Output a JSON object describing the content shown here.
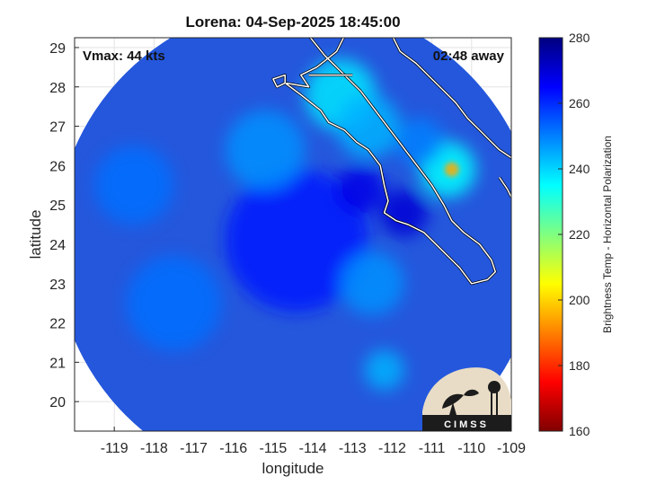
{
  "title": "Lorena: 04-Sep-2025 18:45:00",
  "annotations": {
    "vmax": "Vmax: 44 kts",
    "time_away": "02:48 away"
  },
  "axes": {
    "xlabel": "longitude",
    "ylabel": "latitude",
    "xlim": [
      -120,
      -109
    ],
    "ylim": [
      19.25,
      29.25
    ],
    "xticks": [
      -119,
      -118,
      -117,
      -116,
      -115,
      -114,
      -113,
      -112,
      -111,
      -110,
      -109
    ],
    "yticks": [
      20,
      21,
      22,
      23,
      24,
      25,
      26,
      27,
      28,
      29
    ],
    "grid": true
  },
  "colorbar": {
    "label": "Brightness Temp - Horizontal Polarization",
    "range": [
      160,
      280
    ],
    "ticks": [
      160,
      180,
      200,
      220,
      240,
      260,
      280
    ],
    "colormap": "jet",
    "colors": [
      "#800000",
      "#ff0000",
      "#ff8000",
      "#ffff00",
      "#80ff80",
      "#00ffff",
      "#0080ff",
      "#0000ff",
      "#000080"
    ]
  },
  "logo": "CIMSS",
  "colors": {
    "ocean_dark": "#1e38b8",
    "ocean_mid": "#2457dc",
    "cloud_light": "#35b8f0",
    "cloud_cyan": "#40e0e8",
    "hot_spot": "#ff8a10",
    "coastline": "#ffffff"
  },
  "chart_data": {
    "type": "heatmap",
    "title": "Lorena: 04-Sep-2025 18:45:00",
    "xlabel": "longitude",
    "ylabel": "latitude",
    "xlim": [
      -120,
      -109
    ],
    "ylim": [
      19.25,
      29.25
    ],
    "swath_center": [
      -114.4,
      24.0
    ],
    "swath_radius_deg": 6.1,
    "storm_center": [
      -114.4,
      24.1
    ],
    "features": [
      {
        "lon": -114.4,
        "lat": 24.1,
        "tb": 262,
        "r": 1.8
      },
      {
        "lon": -113.3,
        "lat": 27.8,
        "tb": 238,
        "r": 0.9
      },
      {
        "lon": -112.6,
        "lat": 27.0,
        "tb": 244,
        "r": 0.8
      },
      {
        "lon": -110.6,
        "lat": 25.9,
        "tb": 235,
        "r": 0.7
      },
      {
        "lon": -110.5,
        "lat": 25.9,
        "tb": 195,
        "r": 0.18
      },
      {
        "lon": -115.2,
        "lat": 26.4,
        "tb": 248,
        "r": 1.0
      },
      {
        "lon": -118.5,
        "lat": 25.5,
        "tb": 252,
        "r": 1.0
      },
      {
        "lon": -117.5,
        "lat": 22.5,
        "tb": 252,
        "r": 1.2
      },
      {
        "lon": -112.5,
        "lat": 23.0,
        "tb": 248,
        "r": 0.8
      },
      {
        "lon": -112.2,
        "lat": 20.8,
        "tb": 244,
        "r": 0.5
      },
      {
        "lon": -111.3,
        "lat": 26.6,
        "tb": 250,
        "r": 0.6
      },
      {
        "lon": -111.7,
        "lat": 24.8,
        "tb": 270,
        "r": 0.6
      },
      {
        "lon": -112.8,
        "lat": 25.4,
        "tb": 268,
        "r": 0.6
      }
    ],
    "coastlines": [
      [
        [
          -113.2,
          29.3
        ],
        [
          -113.4,
          28.9
        ],
        [
          -113.9,
          28.5
        ],
        [
          -114.3,
          28.3
        ],
        [
          -114.1,
          28.0
        ],
        [
          -114.7,
          28.1
        ],
        [
          -114.3,
          27.8
        ],
        [
          -113.8,
          27.4
        ],
        [
          -113.6,
          27.1
        ],
        [
          -113.2,
          26.9
        ],
        [
          -112.9,
          26.6
        ],
        [
          -112.6,
          26.4
        ],
        [
          -112.3,
          26.0
        ],
        [
          -112.2,
          25.5
        ],
        [
          -112.1,
          25.1
        ],
        [
          -112.2,
          24.8
        ],
        [
          -111.9,
          24.6
        ],
        [
          -111.6,
          24.5
        ],
        [
          -111.2,
          24.3
        ],
        [
          -110.8,
          23.9
        ],
        [
          -110.3,
          23.4
        ],
        [
          -110.0,
          23.0
        ],
        [
          -109.6,
          23.1
        ],
        [
          -109.4,
          23.3
        ],
        [
          -109.5,
          23.6
        ],
        [
          -109.8,
          24.0
        ],
        [
          -110.2,
          24.3
        ],
        [
          -110.5,
          24.6
        ],
        [
          -110.7,
          25.0
        ],
        [
          -111.0,
          25.5
        ],
        [
          -111.3,
          25.9
        ],
        [
          -111.6,
          26.3
        ],
        [
          -111.9,
          26.7
        ],
        [
          -112.2,
          27.1
        ],
        [
          -112.5,
          27.5
        ],
        [
          -112.8,
          27.9
        ],
        [
          -113.2,
          28.3
        ],
        [
          -113.7,
          28.8
        ],
        [
          -114.1,
          29.3
        ]
      ],
      [
        [
          -112.0,
          29.3
        ],
        [
          -111.8,
          28.9
        ],
        [
          -111.4,
          28.6
        ],
        [
          -111.0,
          28.2
        ],
        [
          -110.7,
          27.9
        ],
        [
          -110.4,
          27.6
        ],
        [
          -110.1,
          27.2
        ],
        [
          -109.8,
          26.9
        ],
        [
          -109.5,
          26.6
        ],
        [
          -109.3,
          26.4
        ],
        [
          -109.0,
          26.2
        ]
      ],
      [
        [
          -109.3,
          25.7
        ],
        [
          -109.1,
          25.4
        ],
        [
          -109.0,
          25.2
        ]
      ],
      [
        [
          -114.7,
          28.1
        ],
        [
          -114.7,
          28.3
        ],
        [
          -115.0,
          28.2
        ],
        [
          -114.9,
          28.0
        ],
        [
          -114.7,
          28.1
        ]
      ],
      [
        [
          -114.1,
          28.3
        ],
        [
          -113.0,
          28.3
        ]
      ]
    ]
  }
}
